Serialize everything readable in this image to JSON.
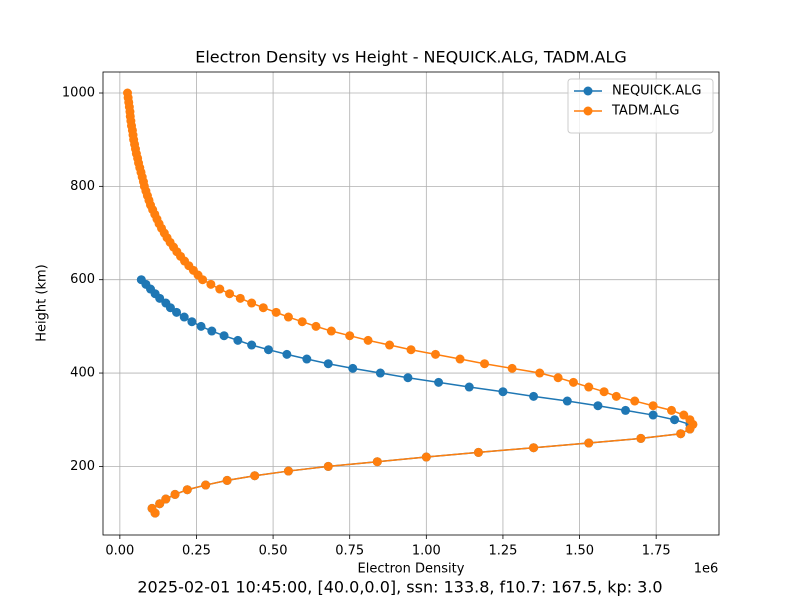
{
  "chart_data": {
    "type": "line",
    "title": "Electron Density vs Height - NEQUICK.ALG, TADM.ALG",
    "x_label": "Electron Density",
    "x_offset_label": "1e6",
    "y_label": "Height (km)",
    "footer": "2025-02-01 10:45:00, [40.0,0.0], ssn: 133.8, f10.7: 167.5, kp: 3.0",
    "xlim": [
      -55000,
      1955000
    ],
    "ylim": [
      53,
      1045
    ],
    "xticks": [
      {
        "value": 0,
        "label": "0.00"
      },
      {
        "value": 250000,
        "label": "0.25"
      },
      {
        "value": 500000,
        "label": "0.50"
      },
      {
        "value": 750000,
        "label": "0.75"
      },
      {
        "value": 1000000,
        "label": "1.00"
      },
      {
        "value": 1250000,
        "label": "1.25"
      },
      {
        "value": 1500000,
        "label": "1.50"
      },
      {
        "value": 1750000,
        "label": "1.75"
      }
    ],
    "yticks": [
      200,
      400,
      600,
      800,
      1000
    ],
    "grid": true,
    "legend": "upper right",
    "series": [
      {
        "name": "NEQUICK.ALG",
        "color": "#1f77b4",
        "x": [
          70000,
          85000,
          100000,
          115000,
          130000,
          150000,
          165000,
          185000,
          210000,
          235000,
          265000,
          300000,
          340000,
          385000,
          430000,
          485000,
          545000,
          610000,
          680000,
          760000,
          850000,
          940000,
          1040000,
          1140000,
          1250000,
          1350000,
          1460000,
          1560000,
          1650000,
          1740000,
          1810000,
          1860000,
          1860000,
          1830000,
          1700000,
          1530000,
          1350000,
          1170000,
          1000000,
          840000,
          680000,
          550000,
          440000,
          350000,
          280000,
          220000,
          180000,
          150000,
          130000,
          105000,
          115000
        ],
        "values": [
          600,
          590,
          580,
          570,
          560,
          550,
          540,
          530,
          520,
          510,
          500,
          490,
          480,
          470,
          460,
          450,
          440,
          430,
          420,
          410,
          400,
          390,
          380,
          370,
          360,
          350,
          340,
          330,
          320,
          310,
          300,
          290,
          280,
          270,
          260,
          250,
          240,
          230,
          220,
          210,
          200,
          190,
          180,
          170,
          160,
          150,
          140,
          130,
          120,
          110,
          100
        ]
      },
      {
        "name": "TADM.ALG",
        "color": "#ff7f0e",
        "x": [
          25000,
          27000,
          29000,
          31000,
          33000,
          34000,
          36000,
          38000,
          41000,
          43000,
          45000,
          48000,
          51000,
          54000,
          58000,
          61000,
          65000,
          69000,
          73000,
          77000,
          80000,
          85000,
          90000,
          95000,
          100000,
          107000,
          114000,
          121000,
          128000,
          136000,
          145000,
          154000,
          164000,
          175000,
          186000,
          198000,
          211000,
          225000,
          240000,
          255000,
          270000,
          297000,
          326000,
          358000,
          393000,
          430000,
          468000,
          510000,
          550000,
          595000,
          640000,
          690000,
          750000,
          810000,
          880000,
          950000,
          1030000,
          1110000,
          1190000,
          1280000,
          1370000,
          1430000,
          1480000,
          1530000,
          1580000,
          1620000,
          1680000,
          1740000,
          1800000,
          1840000,
          1860000,
          1870000,
          1860000,
          1830000,
          1700000,
          1530000,
          1350000,
          1170000,
          1000000,
          840000,
          680000,
          550000,
          440000,
          350000,
          280000,
          220000,
          180000,
          150000,
          130000,
          105000,
          115000
        ],
        "values": [
          1000,
          990,
          980,
          970,
          960,
          950,
          940,
          930,
          920,
          910,
          900,
          890,
          880,
          870,
          860,
          850,
          840,
          830,
          820,
          810,
          800,
          790,
          780,
          770,
          760,
          750,
          740,
          730,
          720,
          710,
          700,
          690,
          680,
          670,
          660,
          650,
          640,
          630,
          620,
          610,
          600,
          590,
          580,
          570,
          560,
          550,
          540,
          530,
          520,
          510,
          500,
          490,
          480,
          470,
          460,
          450,
          440,
          430,
          420,
          410,
          400,
          390,
          380,
          370,
          360,
          350,
          340,
          330,
          320,
          310,
          300,
          290,
          280,
          270,
          260,
          250,
          240,
          230,
          220,
          210,
          200,
          190,
          180,
          170,
          160,
          150,
          140,
          130,
          120,
          110,
          100
        ]
      }
    ]
  }
}
